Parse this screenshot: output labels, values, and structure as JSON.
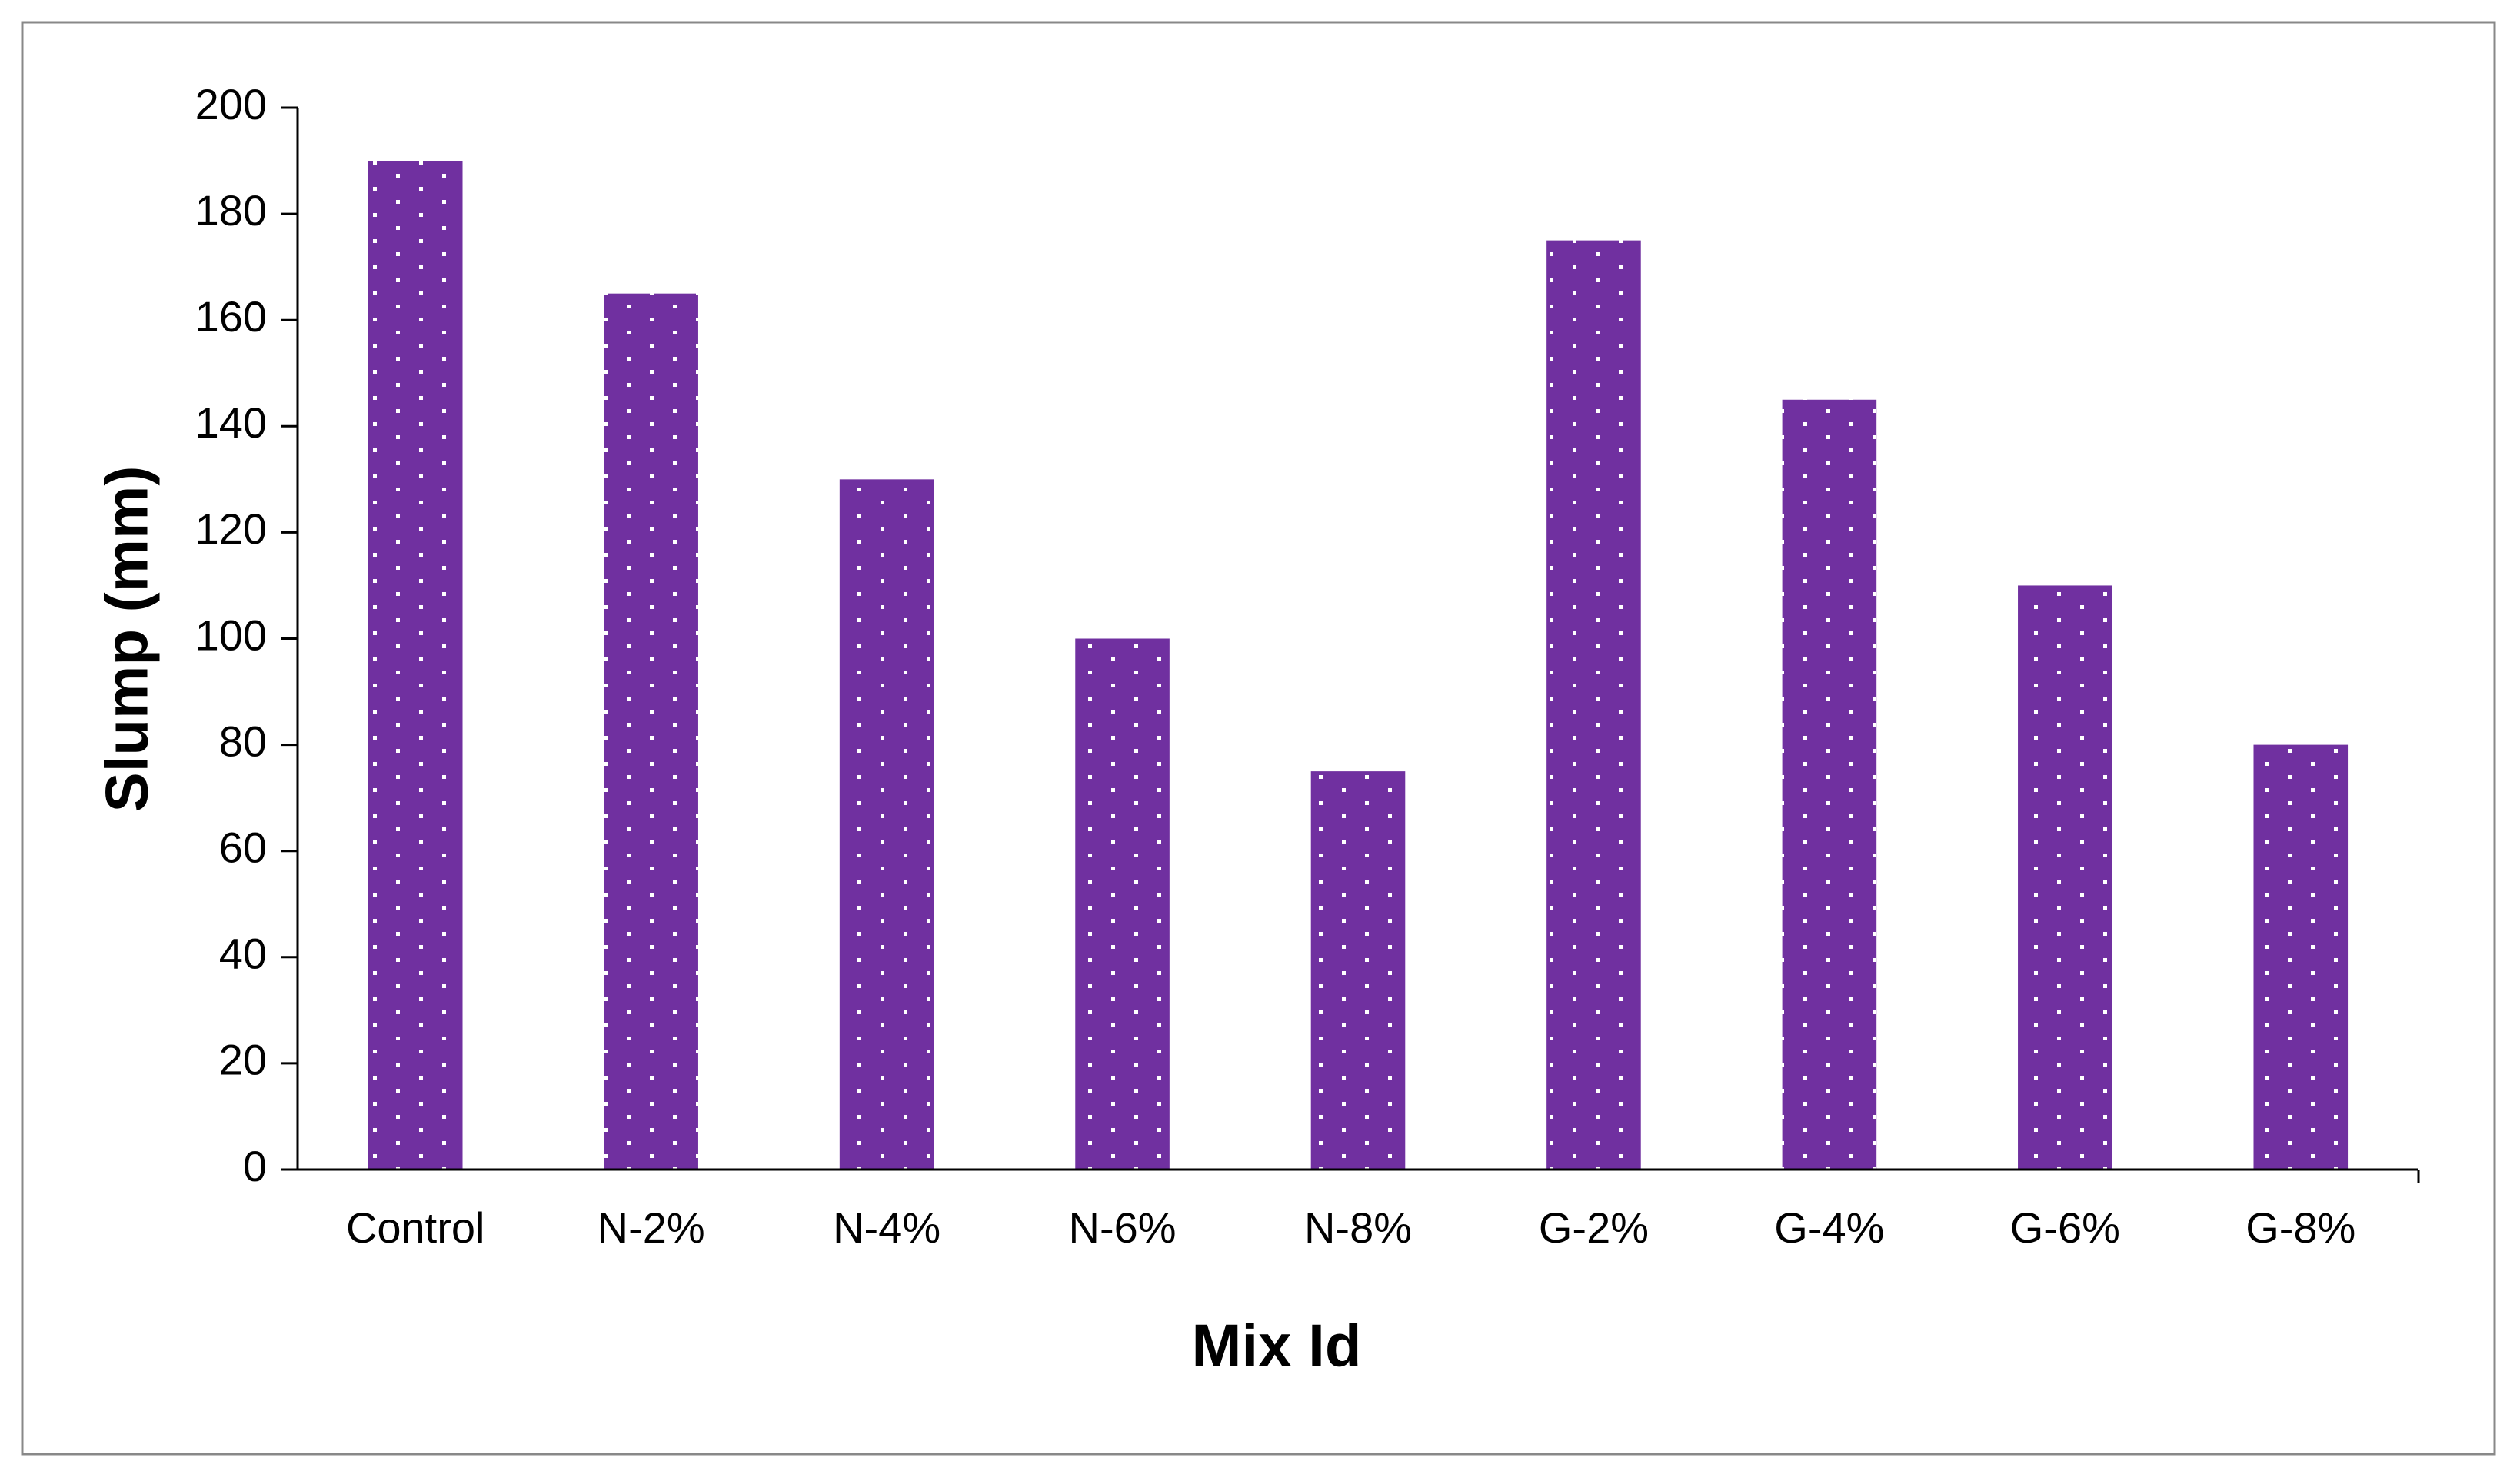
{
  "chart_data": {
    "type": "bar",
    "x_label": "Mix Id",
    "y_label": "Slump (mm)",
    "categories": [
      "Control",
      "N-2%",
      "N-4%",
      "N-6%",
      "N-8%",
      "G-2%",
      "G-4%",
      "G-6%",
      "G-8%"
    ],
    "values": [
      190,
      165,
      130,
      100,
      75,
      175,
      145,
      110,
      80
    ],
    "color": "#7030a0",
    "ylim": [
      0,
      200
    ],
    "yticks": [
      0,
      20,
      40,
      60,
      80,
      100,
      120,
      140,
      160,
      180,
      200
    ],
    "grid": false
  }
}
